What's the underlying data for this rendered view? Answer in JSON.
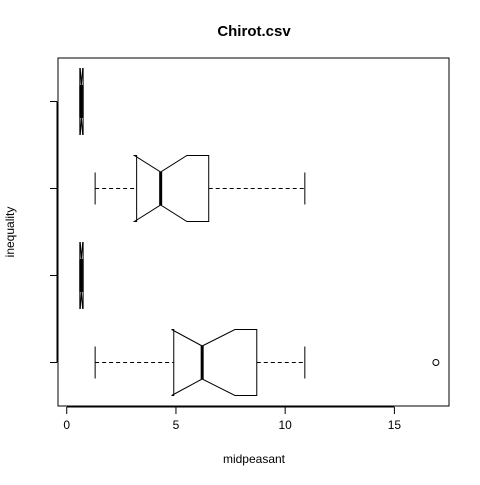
{
  "chart_data": {
    "type": "boxplot",
    "orientation": "horizontal",
    "notched": true,
    "title": "Chirot.csv",
    "xlabel": "midpeasant",
    "ylabel": "inequality",
    "xlim": [
      -0.4,
      17.5
    ],
    "xticks": [
      0,
      5,
      10,
      15
    ],
    "xtick_labels": [
      "0",
      "5",
      "10",
      "15"
    ],
    "y_tick_labels": [],
    "grid": false,
    "legend": "none",
    "boxes": [
      {
        "position": 1,
        "whisker_low": 1.3,
        "q1": 4.9,
        "median": 6.2,
        "q3": 8.7,
        "whisker_high": 10.9,
        "notch_low": 4.8,
        "notch_high": 7.7,
        "outliers": [
          16.9
        ]
      },
      {
        "position": 2,
        "whisker_low": 0.6,
        "q1": 0.6,
        "median": 0.67,
        "q3": 0.75,
        "whisker_high": 0.75,
        "notch_low": 0.62,
        "notch_high": 0.73,
        "outliers": []
      },
      {
        "position": 3,
        "whisker_low": 1.3,
        "q1": 3.2,
        "median": 4.3,
        "q3": 6.5,
        "whisker_high": 10.9,
        "notch_low": 3.1,
        "notch_high": 5.5,
        "outliers": []
      },
      {
        "position": 4,
        "whisker_low": 0.6,
        "q1": 0.6,
        "median": 0.67,
        "q3": 0.75,
        "whisker_high": 0.75,
        "notch_low": 0.62,
        "notch_high": 0.73,
        "outliers": []
      }
    ]
  }
}
